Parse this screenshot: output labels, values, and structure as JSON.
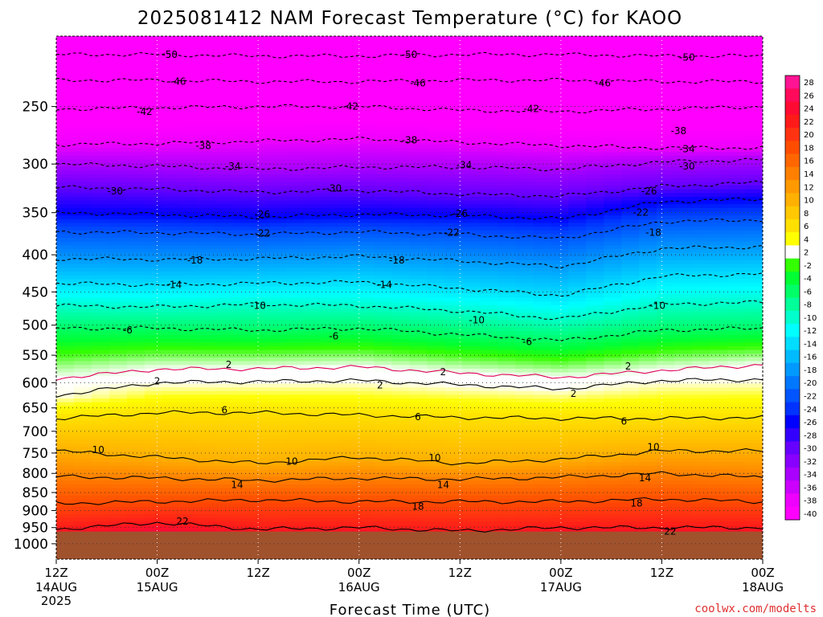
{
  "chart_data": {
    "type": "heatmap",
    "title": "2025081412 NAM Forecast Temperature (°C) for KAOO",
    "xlabel": "Forecast Time (UTC)",
    "ylabel": "",
    "credit": "coolwx.com/modelts",
    "y_axis": {
      "scale": "log-pressure",
      "range": [
        1050,
        200
      ],
      "ticks": [
        250,
        300,
        350,
        400,
        450,
        500,
        550,
        600,
        650,
        700,
        750,
        800,
        850,
        900,
        950,
        1000
      ]
    },
    "x_axis": {
      "range_hours": [
        0,
        84
      ],
      "ticks": [
        {
          "hour": 0,
          "time": "12Z",
          "date": "14AUG",
          "year": "2025"
        },
        {
          "hour": 12,
          "time": "00Z",
          "date": "15AUG",
          "year": ""
        },
        {
          "hour": 24,
          "time": "12Z",
          "date": "",
          "year": ""
        },
        {
          "hour": 36,
          "time": "00Z",
          "date": "16AUG",
          "year": ""
        },
        {
          "hour": 48,
          "time": "12Z",
          "date": "",
          "year": ""
        },
        {
          "hour": 60,
          "time": "00Z",
          "date": "17AUG",
          "year": ""
        },
        {
          "hour": 72,
          "time": "12Z",
          "date": "",
          "year": ""
        },
        {
          "hour": 84,
          "time": "00Z",
          "date": "18AUG",
          "year": ""
        }
      ]
    },
    "colorbar": {
      "levels": [
        28,
        26,
        24,
        22,
        20,
        18,
        16,
        14,
        12,
        10,
        8,
        6,
        4,
        2,
        -2,
        -4,
        -6,
        -8,
        -10,
        -12,
        -14,
        -16,
        -18,
        -20,
        -22,
        -24,
        -26,
        -28,
        -30,
        -32,
        -34,
        -36,
        -38,
        -40
      ],
      "colors": [
        "#ff1493",
        "#ff0a5a",
        "#ff0a32",
        "#ff1a1a",
        "#ff3311",
        "#ff4d00",
        "#ff6600",
        "#ff8000",
        "#ff9900",
        "#ffb000",
        "#ffc800",
        "#ffe000",
        "#ffff00",
        "#ffffff",
        "#33ff00",
        "#00ff33",
        "#00ff66",
        "#00ff99",
        "#00ffcc",
        "#00ffff",
        "#00ddff",
        "#00bbff",
        "#0099ff",
        "#0077ff",
        "#0055ff",
        "#0033ff",
        "#0000ff",
        "#3300ff",
        "#6600ff",
        "#8800ff",
        "#aa00ff",
        "#cc00ff",
        "#ee00ff",
        "#ff00ff"
      ]
    },
    "surface_pressure_hPa": 962,
    "isotherms": [
      {
        "temp": -50,
        "pressure_hPa": [
          212,
          212,
          213,
          213,
          212,
          212,
          213,
          213
        ]
      },
      {
        "temp": -46,
        "pressure_hPa": [
          230,
          230,
          231,
          231,
          230,
          230,
          231,
          231
        ]
      },
      {
        "temp": -42,
        "pressure_hPa": [
          252,
          251,
          250,
          250,
          253,
          254,
          252,
          250
        ]
      },
      {
        "temp": -38,
        "pressure_hPa": [
          282,
          281,
          279,
          277,
          280,
          283,
          285,
          285
        ]
      },
      {
        "temp": -34,
        "pressure_hPa": [
          300,
          302,
          305,
          303,
          303,
          305,
          298,
          296
        ]
      },
      {
        "temp": -30,
        "pressure_hPa": [
          323,
          325,
          328,
          326,
          330,
          332,
          322,
          318
        ]
      },
      {
        "temp": -26,
        "pressure_hPa": [
          350,
          352,
          355,
          352,
          353,
          357,
          338,
          335
        ]
      },
      {
        "temp": -22,
        "pressure_hPa": [
          372,
          373,
          375,
          372,
          375,
          380,
          360,
          358
        ]
      },
      {
        "temp": -18,
        "pressure_hPa": [
          405,
          406,
          405,
          402,
          408,
          415,
          392,
          390
        ]
      },
      {
        "temp": -14,
        "pressure_hPa": [
          438,
          440,
          438,
          436,
          445,
          455,
          428,
          425
        ]
      },
      {
        "temp": -10,
        "pressure_hPa": [
          470,
          472,
          468,
          470,
          478,
          490,
          468,
          465
        ]
      },
      {
        "temp": -6,
        "pressure_hPa": [
          505,
          505,
          508,
          505,
          515,
          525,
          508,
          505
        ]
      },
      {
        "temp": 2,
        "pressure_hPa": [
          592,
          575,
          574,
          571,
          582,
          590,
          577,
          567
        ]
      },
      {
        "temp": 2,
        "pressure_hPa": [
          625,
          600,
          598,
          596,
          604,
          612,
          596,
          594
        ]
      },
      {
        "temp": 6,
        "pressure_hPa": [
          672,
          660,
          660,
          665,
          670,
          672,
          672,
          670
        ]
      },
      {
        "temp": 10,
        "pressure_hPa": [
          745,
          760,
          775,
          760,
          775,
          765,
          745,
          745
        ]
      },
      {
        "temp": 14,
        "pressure_hPa": [
          808,
          812,
          818,
          812,
          815,
          810,
          800,
          810
        ]
      },
      {
        "temp": 18,
        "pressure_hPa": [
          880,
          875,
          870,
          875,
          875,
          875,
          868,
          875
        ]
      },
      {
        "temp": 22,
        "pressure_hPa": [
          955,
          935,
          955,
          950,
          960,
          950,
          950,
          950
        ]
      }
    ],
    "contour_labels": [
      {
        "text": "-50",
        "hour": 13.5,
        "p": 212
      },
      {
        "text": "-50",
        "hour": 42,
        "p": 212
      },
      {
        "text": "-50",
        "hour": 75,
        "p": 214
      },
      {
        "text": "-46",
        "hour": 14.5,
        "p": 231
      },
      {
        "text": "-46",
        "hour": 43,
        "p": 232
      },
      {
        "text": "-46",
        "hour": 65,
        "p": 232
      },
      {
        "text": "-42",
        "hour": 10.5,
        "p": 254
      },
      {
        "text": "-42",
        "hour": 35,
        "p": 250
      },
      {
        "text": "-42",
        "hour": 56.5,
        "p": 252
      },
      {
        "text": "-38",
        "hour": 17.5,
        "p": 283
      },
      {
        "text": "-38",
        "hour": 42,
        "p": 278
      },
      {
        "text": "-38",
        "hour": 74,
        "p": 270
      },
      {
        "text": "-34",
        "hour": 21,
        "p": 302
      },
      {
        "text": "-34",
        "hour": 48.5,
        "p": 301
      },
      {
        "text": "-34",
        "hour": 75,
        "p": 286
      },
      {
        "text": "-30",
        "hour": 7,
        "p": 327
      },
      {
        "text": "-30",
        "hour": 33,
        "p": 324
      },
      {
        "text": "-30",
        "hour": 75,
        "p": 302
      },
      {
        "text": "-26",
        "hour": 24.5,
        "p": 352
      },
      {
        "text": "-26",
        "hour": 48,
        "p": 351
      },
      {
        "text": "-26",
        "hour": 70.5,
        "p": 327
      },
      {
        "text": "-22",
        "hour": 24.5,
        "p": 374
      },
      {
        "text": "-22",
        "hour": 47,
        "p": 373
      },
      {
        "text": "-22",
        "hour": 69.5,
        "p": 350
      },
      {
        "text": "-18",
        "hour": 16.5,
        "p": 407
      },
      {
        "text": "-18",
        "hour": 40.5,
        "p": 407
      },
      {
        "text": "-18",
        "hour": 71,
        "p": 373
      },
      {
        "text": "-14",
        "hour": 14,
        "p": 440
      },
      {
        "text": "-14",
        "hour": 39,
        "p": 440
      },
      {
        "text": "-10",
        "hour": 24,
        "p": 470
      },
      {
        "text": "-10",
        "hour": 50,
        "p": 492
      },
      {
        "text": "-10",
        "hour": 71.5,
        "p": 470
      },
      {
        "text": "-6",
        "hour": 8.5,
        "p": 508
      },
      {
        "text": "-6",
        "hour": 33,
        "p": 518
      },
      {
        "text": "-6",
        "hour": 56,
        "p": 527
      },
      {
        "text": "2",
        "hour": 20.5,
        "p": 567
      },
      {
        "text": "2",
        "hour": 46,
        "p": 580
      },
      {
        "text": "2",
        "hour": 68,
        "p": 570
      },
      {
        "text": "2",
        "hour": 12,
        "p": 597
      },
      {
        "text": "2",
        "hour": 38.5,
        "p": 605
      },
      {
        "text": "2",
        "hour": 61.5,
        "p": 621
      },
      {
        "text": "6",
        "hour": 20,
        "p": 655
      },
      {
        "text": "6",
        "hour": 43,
        "p": 669
      },
      {
        "text": "6",
        "hour": 67.5,
        "p": 678
      },
      {
        "text": "10",
        "hour": 5,
        "p": 743
      },
      {
        "text": "10",
        "hour": 28,
        "p": 771
      },
      {
        "text": "10",
        "hour": 45,
        "p": 762
      },
      {
        "text": "10",
        "hour": 71,
        "p": 736
      },
      {
        "text": "14",
        "hour": 21.5,
        "p": 830
      },
      {
        "text": "14",
        "hour": 46,
        "p": 830
      },
      {
        "text": "14",
        "hour": 70,
        "p": 812
      },
      {
        "text": "18",
        "hour": 43,
        "p": 889
      },
      {
        "text": "18",
        "hour": 69,
        "p": 880
      },
      {
        "text": "22",
        "hour": 15,
        "p": 931
      },
      {
        "text": "22",
        "hour": 73,
        "p": 962
      }
    ]
  }
}
